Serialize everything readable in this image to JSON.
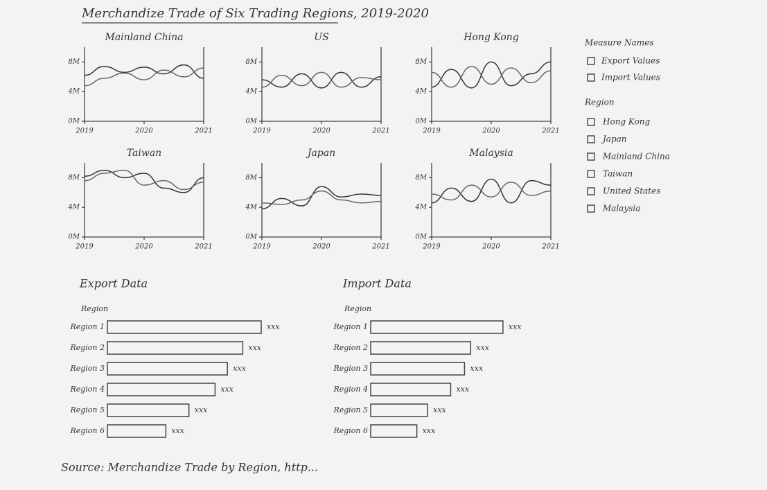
{
  "title": "Merchandize Trade of Six Trading Regions, 2019-2020",
  "source": "Source: Merchandize Trade by Region, http...",
  "legend": {
    "measure_title": "Measure Names",
    "region_title": "Region",
    "regions": [
      "Hong Kong",
      "Japan",
      "Mainland China",
      "Taiwan",
      "United States",
      "Malaysia"
    ]
  },
  "chart_data": [
    {
      "type": "line",
      "title": "Mainland China",
      "x": [
        2019,
        2019.33,
        2019.67,
        2020,
        2020.33,
        2020.67,
        2021
      ],
      "xlim": [
        2019,
        2021
      ],
      "xticks": [
        2019,
        2020,
        2021
      ],
      "ylim": [
        0,
        10
      ],
      "yticks": [
        {
          "value": 0,
          "label": "0M"
        },
        {
          "value": 4,
          "label": "4M"
        },
        {
          "value": 8,
          "label": "8M"
        }
      ],
      "series": [
        {
          "name": "Export Values",
          "color": "#333333",
          "values": [
            6.2,
            7.4,
            6.6,
            7.3,
            6.4,
            7.6,
            5.8
          ]
        },
        {
          "name": "Import Values",
          "color": "#666666",
          "values": [
            4.8,
            5.8,
            6.5,
            5.6,
            6.9,
            6.0,
            7.2
          ]
        }
      ]
    },
    {
      "type": "line",
      "title": "US",
      "x": [
        2019,
        2019.33,
        2019.67,
        2020,
        2020.33,
        2020.67,
        2021
      ],
      "xlim": [
        2019,
        2021
      ],
      "xticks": [
        2019,
        2020,
        2021
      ],
      "ylim": [
        0,
        10
      ],
      "yticks": [
        {
          "value": 0,
          "label": "0M"
        },
        {
          "value": 4,
          "label": "4M"
        },
        {
          "value": 8,
          "label": "8M"
        }
      ],
      "series": [
        {
          "name": "Export Values",
          "color": "#333333",
          "values": [
            5.6,
            4.6,
            6.4,
            4.5,
            6.6,
            4.6,
            6.0
          ]
        },
        {
          "name": "Import Values",
          "color": "#666666",
          "values": [
            4.6,
            6.2,
            4.8,
            6.6,
            4.6,
            5.9,
            5.6
          ]
        }
      ]
    },
    {
      "type": "line",
      "title": "Hong Kong",
      "x": [
        2019,
        2019.33,
        2019.67,
        2020,
        2020.33,
        2020.67,
        2021
      ],
      "xlim": [
        2019,
        2021
      ],
      "xticks": [
        2019,
        2020,
        2021
      ],
      "ylim": [
        0,
        10
      ],
      "yticks": [
        {
          "value": 0,
          "label": "0M"
        },
        {
          "value": 4,
          "label": "4M"
        },
        {
          "value": 8,
          "label": "8M"
        }
      ],
      "series": [
        {
          "name": "Export Values",
          "color": "#333333",
          "values": [
            4.6,
            7.0,
            4.5,
            8.0,
            4.8,
            6.4,
            8.0
          ]
        },
        {
          "name": "Import Values",
          "color": "#666666",
          "values": [
            6.6,
            4.6,
            7.4,
            5.0,
            7.2,
            5.2,
            6.8
          ]
        }
      ]
    },
    {
      "type": "line",
      "title": "Taiwan",
      "x": [
        2019,
        2019.33,
        2019.67,
        2020,
        2020.33,
        2020.67,
        2021
      ],
      "xlim": [
        2019,
        2021
      ],
      "xticks": [
        2019,
        2020,
        2021
      ],
      "ylim": [
        0,
        10
      ],
      "yticks": [
        {
          "value": 0,
          "label": "0M"
        },
        {
          "value": 4,
          "label": "4M"
        },
        {
          "value": 8,
          "label": "8M"
        }
      ],
      "series": [
        {
          "name": "Export Values",
          "color": "#333333",
          "values": [
            8.2,
            9.0,
            8.0,
            8.6,
            6.6,
            6.0,
            8.0
          ]
        },
        {
          "name": "Import Values",
          "color": "#666666",
          "values": [
            7.6,
            8.6,
            9.0,
            7.0,
            7.6,
            6.4,
            7.4
          ]
        }
      ]
    },
    {
      "type": "line",
      "title": "Japan",
      "x": [
        2019,
        2019.33,
        2019.67,
        2020,
        2020.33,
        2020.67,
        2021
      ],
      "xlim": [
        2019,
        2021
      ],
      "xticks": [
        2019,
        2020,
        2021
      ],
      "ylim": [
        0,
        10
      ],
      "yticks": [
        {
          "value": 0,
          "label": "0M"
        },
        {
          "value": 4,
          "label": "4M"
        },
        {
          "value": 8,
          "label": "8M"
        }
      ],
      "series": [
        {
          "name": "Export Values",
          "color": "#333333",
          "values": [
            3.8,
            5.2,
            4.2,
            6.8,
            5.4,
            5.8,
            5.6
          ]
        },
        {
          "name": "Import Values",
          "color": "#666666",
          "values": [
            4.6,
            4.4,
            5.0,
            6.2,
            5.0,
            4.6,
            4.8
          ]
        }
      ]
    },
    {
      "type": "line",
      "title": "Malaysia",
      "x": [
        2019,
        2019.33,
        2019.67,
        2020,
        2020.33,
        2020.67,
        2021
      ],
      "xlim": [
        2019,
        2021
      ],
      "xticks": [
        2019,
        2020,
        2021
      ],
      "ylim": [
        0,
        10
      ],
      "yticks": [
        {
          "value": 0,
          "label": "0M"
        },
        {
          "value": 4,
          "label": "4M"
        },
        {
          "value": 8,
          "label": "8M"
        }
      ],
      "series": [
        {
          "name": "Export Values",
          "color": "#333333",
          "values": [
            4.6,
            6.6,
            4.8,
            7.8,
            4.6,
            7.6,
            7.0
          ]
        },
        {
          "name": "Import Values",
          "color": "#666666",
          "values": [
            5.8,
            5.0,
            7.0,
            5.4,
            7.4,
            5.6,
            6.2
          ]
        }
      ]
    },
    {
      "type": "bar",
      "title": "Export Data",
      "y_label": "Region",
      "color": "#f4f4f2",
      "categories": [
        "Region 1",
        "Region 2",
        "Region 3",
        "Region 4",
        "Region 5",
        "Region 6"
      ],
      "values": [
        100,
        88,
        78,
        70,
        53,
        38
      ],
      "value_labels": [
        "xxx",
        "xxx",
        "xxx",
        "xxx",
        "xxx",
        "xxx"
      ]
    },
    {
      "type": "bar",
      "title": "Import Data",
      "y_label": "Region",
      "color": "#f4f4f2",
      "categories": [
        "Region 1",
        "Region 2",
        "Region 3",
        "Region 4",
        "Region 5",
        "Region 6"
      ],
      "values": [
        86,
        65,
        61,
        52,
        37,
        30
      ],
      "value_labels": [
        "xxx",
        "xxx",
        "xxx",
        "xxx",
        "xxx",
        "xxx"
      ]
    }
  ]
}
